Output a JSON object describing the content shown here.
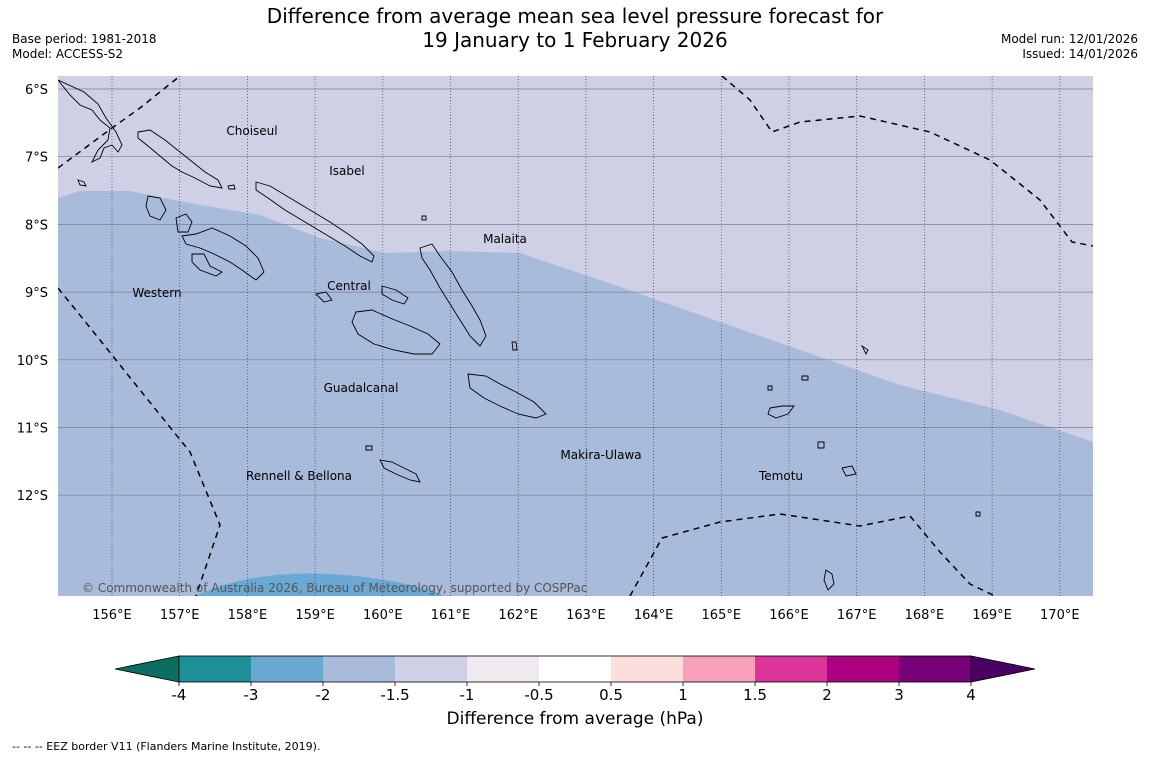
{
  "title": {
    "line1": "Difference from average mean sea level pressure forecast for",
    "line2": "19 January to 1 February 2026"
  },
  "meta_left": {
    "base_period": "Base period: 1981-2018",
    "model": "Model: ACCESS-S2"
  },
  "meta_right": {
    "model_run": "Model run: 12/01/2026",
    "issued": "Issued: 14/01/2026"
  },
  "map": {
    "lat_labels": [
      "6°S",
      "7°S",
      "8°S",
      "9°S",
      "10°S",
      "11°S",
      "12°S"
    ],
    "lon_labels": [
      "156°E",
      "157°E",
      "158°E",
      "159°E",
      "160°E",
      "161°E",
      "162°E",
      "163°E",
      "164°E",
      "165°E",
      "166°E",
      "167°E",
      "168°E",
      "169°E",
      "170°E"
    ],
    "regions": [
      "Choiseul",
      "Isabel",
      "Malaita",
      "Western",
      "Central",
      "Guadalcanal",
      "Makira-Ulawa",
      "Rennell & Bellona",
      "Temotu"
    ],
    "copyright": "© Commonwealth of Australia 2026, Bureau of Meteorology, supported by COSPPac",
    "colors": {
      "bg_light": "#cfd0e5",
      "bg_mid": "#a8bbdb",
      "bg_dark": "#6aa9d4"
    }
  },
  "colorbar": {
    "title": "Difference from average (hPa)",
    "ticks": [
      "-4",
      "-3",
      "-2",
      "-1.5",
      "-1",
      "-0.5",
      "0.5",
      "1",
      "1.5",
      "2",
      "3",
      "4"
    ],
    "colors": [
      "#0c6e60",
      "#1f9098",
      "#68a8d2",
      "#a8bbdb",
      "#cfd0e5",
      "#efe9f0",
      "#ffffff",
      "#fcdedd",
      "#f8a1bb",
      "#dc3499",
      "#ab0281",
      "#770178",
      "#4a0161"
    ]
  },
  "eez_note": "--  --  -- EEZ border V11 (Flanders Marine Institute, 2019)."
}
